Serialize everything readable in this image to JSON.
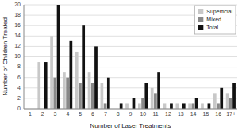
{
  "chart_data": {
    "type": "bar",
    "xlabel": "Number of Laser Treatments",
    "ylabel": "Number of Children Treated",
    "categories": [
      "1",
      "2",
      "3",
      "4",
      "5",
      "6",
      "7",
      "8",
      "9",
      "10",
      "11",
      "12",
      "13",
      "14",
      "15",
      "16",
      "17+"
    ],
    "series": [
      {
        "name": "Superficial",
        "color": "#c8c8c8",
        "values": [
          0,
          9,
          14,
          7,
          11,
          7,
          5,
          0,
          1,
          1,
          4,
          1,
          1,
          1,
          1,
          3,
          3
        ]
      },
      {
        "name": "Mixed",
        "color": "#888888",
        "values": [
          0,
          0,
          6,
          6,
          5,
          5,
          1,
          0,
          0,
          2,
          3,
          0,
          0,
          1,
          0,
          1,
          2
        ]
      },
      {
        "name": "Total",
        "color": "#111111",
        "values": [
          0,
          9,
          20,
          13,
          16,
          12,
          6,
          1,
          2,
          5,
          7,
          1,
          1,
          2,
          1,
          4,
          5
        ]
      }
    ],
    "ylim": [
      0,
      20
    ],
    "yticks": [
      0,
      2,
      4,
      6,
      8,
      10,
      12,
      14,
      16,
      18,
      20
    ],
    "grid": true,
    "legend": "upper right"
  }
}
